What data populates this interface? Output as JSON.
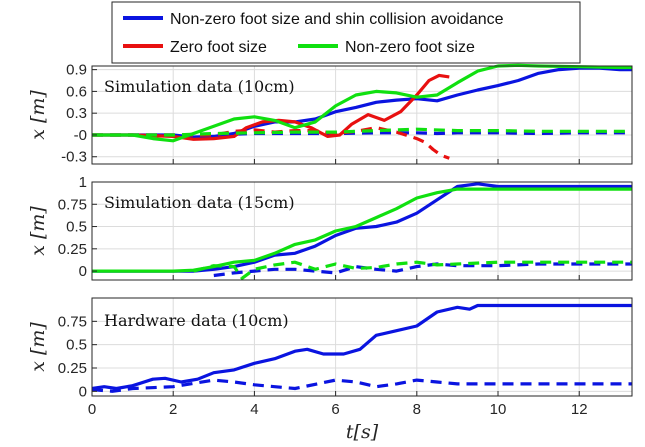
{
  "legend": {
    "entries": [
      {
        "label": "Non-zero foot size and shin collision avoidance",
        "color": "#0a14e0"
      },
      {
        "label": "Zero foot size",
        "color": "#e81010"
      },
      {
        "label": "Non-zero foot size",
        "color": "#10e010"
      }
    ]
  },
  "chart_data": [
    {
      "type": "line",
      "title": "Simulation data (10cm)",
      "ylabel": "x [m]",
      "xlabel": "",
      "xlim": [
        0,
        13.3
      ],
      "ylim": [
        -0.4,
        0.95
      ],
      "yticks": [
        -0.3,
        0,
        0.3,
        0.6,
        0.9
      ],
      "ytick_labels": [
        "-0.3",
        "-0",
        "0.3",
        "0.6",
        "0.9"
      ],
      "xticks": [
        0,
        2,
        4,
        6,
        8,
        10,
        12
      ],
      "grid": true,
      "series": [
        {
          "name": "Non-zero foot size and shin collision avoidance",
          "color": "#0a14e0",
          "dash": false,
          "x": [
            0,
            1,
            2,
            2.5,
            3,
            3.5,
            4,
            4.5,
            5,
            5.5,
            6,
            6.5,
            7,
            7.5,
            8,
            8.5,
            9,
            9.5,
            10,
            10.5,
            11,
            11.5,
            12,
            12.5,
            13,
            13.3
          ],
          "y": [
            0,
            0,
            0,
            -0.03,
            -0.02,
            0.02,
            0.12,
            0.18,
            0.18,
            0.22,
            0.32,
            0.38,
            0.45,
            0.48,
            0.5,
            0.47,
            0.55,
            0.62,
            0.68,
            0.75,
            0.85,
            0.9,
            0.92,
            0.92,
            0.9,
            0.9
          ]
        },
        {
          "name": "Non-zero foot size and shin collision avoidance",
          "color": "#0a14e0",
          "dash": true,
          "x": [
            0,
            1,
            2,
            3,
            4,
            5,
            6,
            7,
            8,
            8.5,
            9,
            10,
            11,
            12,
            13,
            13.3
          ],
          "y": [
            0,
            0,
            0,
            0,
            0.02,
            0.02,
            0.02,
            0.03,
            0.03,
            0.02,
            0.03,
            0.03,
            0.02,
            0.03,
            0.03,
            0.03
          ]
        },
        {
          "name": "Zero foot size",
          "color": "#e81010",
          "dash": false,
          "x": [
            0,
            1,
            2,
            2.5,
            3,
            3.5,
            3.8,
            4.2,
            4.6,
            5,
            5.4,
            5.8,
            6.1,
            6.4,
            6.8,
            7.2,
            7.6,
            8,
            8.3,
            8.55,
            8.8
          ],
          "y": [
            0,
            0,
            -0.02,
            -0.06,
            -0.05,
            -0.02,
            0.1,
            0.18,
            0.2,
            0.18,
            0.1,
            -0.02,
            0,
            0.15,
            0.28,
            0.2,
            0.32,
            0.55,
            0.75,
            0.82,
            0.8
          ]
        },
        {
          "name": "Zero foot size",
          "color": "#e81010",
          "dash": true,
          "x": [
            0,
            1,
            2,
            3,
            3.5,
            4,
            4.5,
            5,
            5.5,
            6,
            6.5,
            7,
            7.5,
            8,
            8.2,
            8.4,
            8.6,
            8.8
          ],
          "y": [
            0,
            0,
            0,
            0,
            0.05,
            0.07,
            0.04,
            0.06,
            0.06,
            0.02,
            0.05,
            0.1,
            0.04,
            -0.05,
            -0.1,
            -0.2,
            -0.28,
            -0.32
          ]
        },
        {
          "name": "Non-zero foot size",
          "color": "#10e010",
          "dash": false,
          "x": [
            0,
            1,
            1.5,
            2,
            2.5,
            3,
            3.5,
            4,
            4.5,
            5,
            5.5,
            6,
            6.5,
            7,
            7.5,
            8,
            8.5,
            9,
            9.5,
            10,
            10.5,
            11,
            12,
            13,
            13.3
          ],
          "y": [
            0,
            0,
            -0.05,
            -0.08,
            0.02,
            0.12,
            0.22,
            0.25,
            0.2,
            0.1,
            0.18,
            0.4,
            0.55,
            0.6,
            0.58,
            0.52,
            0.55,
            0.72,
            0.88,
            0.95,
            0.96,
            0.95,
            0.94,
            0.93,
            0.93
          ]
        },
        {
          "name": "Non-zero foot size",
          "color": "#10e010",
          "dash": true,
          "x": [
            0,
            1,
            2,
            3,
            4,
            5,
            6,
            7,
            8,
            9,
            10,
            11,
            12,
            13,
            13.3
          ],
          "y": [
            0,
            0,
            0,
            0.02,
            0.03,
            0.04,
            0.04,
            0.06,
            0.08,
            0.06,
            0.06,
            0.05,
            0.05,
            0.05,
            0.05
          ]
        }
      ]
    },
    {
      "type": "line",
      "title": "Simulation data (15cm)",
      "ylabel": "x [m]",
      "xlabel": "",
      "xlim": [
        0,
        13.3
      ],
      "ylim": [
        -0.1,
        1.0
      ],
      "yticks": [
        0,
        0.25,
        0.5,
        0.75,
        1
      ],
      "ytick_labels": [
        "0",
        "0.25",
        "0.5",
        "0.75",
        "1"
      ],
      "xticks": [
        0,
        2,
        4,
        6,
        8,
        10,
        12
      ],
      "grid": true,
      "series": [
        {
          "name": "Non-zero foot size and shin collision avoidance",
          "color": "#0a14e0",
          "dash": false,
          "x": [
            0,
            1,
            2,
            2.5,
            3,
            3.5,
            4,
            4.5,
            5,
            5.5,
            6,
            6.5,
            7,
            7.5,
            8,
            8.5,
            9,
            9.5,
            10,
            11,
            12,
            13,
            13.3
          ],
          "y": [
            0,
            0,
            0,
            0,
            0.02,
            0.05,
            0.1,
            0.18,
            0.2,
            0.28,
            0.4,
            0.48,
            0.5,
            0.55,
            0.65,
            0.8,
            0.95,
            0.98,
            0.95,
            0.95,
            0.95,
            0.95,
            0.95
          ]
        },
        {
          "name": "Non-zero foot size and shin collision avoidance",
          "color": "#0a14e0",
          "dash": true,
          "x": [
            3,
            3.5,
            4,
            4.5,
            5,
            5.5,
            6,
            6.5,
            7,
            7.5,
            8,
            8.5,
            9,
            10,
            11,
            12,
            13,
            13.3
          ],
          "y": [
            -0.05,
            -0.02,
            0,
            0.02,
            0.02,
            0,
            -0.02,
            0.05,
            0.02,
            0.0,
            0.05,
            0.08,
            0.06,
            0.06,
            0.08,
            0.08,
            0.08,
            0.08
          ]
        },
        {
          "name": "Non-zero foot size",
          "color": "#10e010",
          "dash": false,
          "x": [
            0,
            1,
            2,
            2.5,
            3,
            3.5,
            4,
            4.5,
            5,
            5.5,
            6,
            6.5,
            7,
            7.5,
            8,
            8.5,
            9,
            10,
            11,
            12,
            13,
            13.3
          ],
          "y": [
            0,
            0,
            0,
            0.01,
            0.05,
            0.1,
            0.12,
            0.2,
            0.3,
            0.35,
            0.45,
            0.5,
            0.6,
            0.7,
            0.82,
            0.88,
            0.92,
            0.92,
            0.92,
            0.92,
            0.92,
            0.92
          ]
        },
        {
          "name": "Non-zero foot size",
          "color": "#10e010",
          "dash": true,
          "x": [
            2.5,
            3,
            3.5,
            3.7,
            4,
            4.5,
            5,
            5.5,
            6,
            6.5,
            7,
            7.5,
            8,
            8.5,
            9,
            10,
            11,
            12,
            13,
            13.3
          ],
          "y": [
            0,
            0.06,
            0.05,
            -0.08,
            0.02,
            0.07,
            0.1,
            0.02,
            0.08,
            0.03,
            0.04,
            0.08,
            0.1,
            0.07,
            0.08,
            0.1,
            0.1,
            0.1,
            0.1,
            0.1
          ]
        }
      ]
    },
    {
      "type": "line",
      "title": "Hardware data (10cm)",
      "ylabel": "x [m]",
      "xlabel": "t[s]",
      "xlim": [
        0,
        13.3
      ],
      "ylim": [
        -0.05,
        1.0
      ],
      "yticks": [
        0,
        0.25,
        0.5,
        0.75
      ],
      "ytick_labels": [
        "0",
        "0.25",
        "0.5",
        "0.75"
      ],
      "xticks": [
        0,
        2,
        4,
        6,
        8,
        10,
        12
      ],
      "xtick_labels": [
        "0",
        "2",
        "4",
        "6",
        "8",
        "10",
        "12"
      ],
      "grid": true,
      "series": [
        {
          "name": "Non-zero foot size and shin collision avoidance",
          "color": "#0a14e0",
          "dash": false,
          "x": [
            0,
            0.3,
            0.6,
            1,
            1.5,
            1.8,
            2.2,
            2.6,
            3,
            3.5,
            4,
            4.5,
            5,
            5.3,
            5.7,
            6.2,
            6.6,
            7,
            7.5,
            8,
            8.5,
            9,
            9.3,
            9.5,
            10,
            11,
            12,
            13,
            13.3
          ],
          "y": [
            0.03,
            0.05,
            0.03,
            0.06,
            0.13,
            0.14,
            0.1,
            0.13,
            0.2,
            0.23,
            0.3,
            0.35,
            0.43,
            0.45,
            0.4,
            0.4,
            0.45,
            0.6,
            0.65,
            0.7,
            0.85,
            0.9,
            0.88,
            0.92,
            0.92,
            0.92,
            0.92,
            0.92,
            0.92
          ]
        },
        {
          "name": "Non-zero foot size and shin collision avoidance",
          "color": "#0a14e0",
          "dash": true,
          "x": [
            0,
            0.5,
            1,
            2,
            3,
            3.5,
            4,
            4.5,
            5,
            6,
            6.5,
            7,
            7.5,
            8,
            8.5,
            9,
            10,
            11,
            12,
            13,
            13.3
          ],
          "y": [
            0.02,
            0,
            0.03,
            0.05,
            0.12,
            0.1,
            0.07,
            0.05,
            0.03,
            0.12,
            0.1,
            0.05,
            0.08,
            0.12,
            0.1,
            0.08,
            0.08,
            0.08,
            0.08,
            0.08,
            0.08
          ]
        }
      ]
    }
  ]
}
